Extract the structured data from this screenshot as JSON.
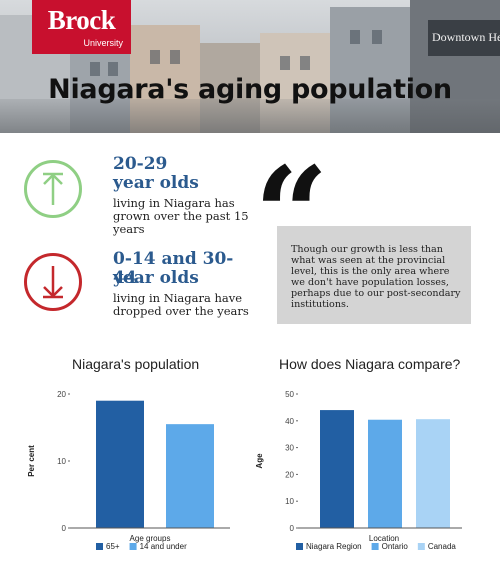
{
  "brand": {
    "name": "Brock",
    "sub": "University",
    "color": "#c8102e"
  },
  "header": {
    "title": "Niagara's aging population",
    "sign_text": "Downtown Health"
  },
  "stats": [
    {
      "heading_1": "20-29",
      "heading_2": "year olds",
      "body": "living in Niagara has grown over the past 15 years",
      "icon": "arrow-up-icon",
      "color": "#8fcf84"
    },
    {
      "heading_1": "0-14 and 30-44",
      "heading_2": "year olds",
      "body": "living in Niagara have dropped over the years",
      "icon": "arrow-down-icon",
      "color": "#c4282c"
    }
  ],
  "quote": {
    "mark": "“",
    "text": "Though our growth is less than what was seen at the provincial level, this is the only area where we don't have population losses, perhaps due to our post-secondary institutions."
  },
  "chart_data": [
    {
      "type": "bar",
      "title": "Niagara's population",
      "xlabel": "Age groups",
      "ylabel": "Per cent",
      "ylim": [
        0,
        20
      ],
      "yticks": [
        0,
        10,
        20
      ],
      "grid": false,
      "legend": "bottom",
      "series": [
        {
          "name": "65+",
          "value": 19,
          "color": "#225fa3"
        },
        {
          "name": "14 and under",
          "value": 15.5,
          "color": "#5da9e9"
        }
      ]
    },
    {
      "type": "bar",
      "title": "How does Niagara compare?",
      "xlabel": "Location",
      "ylabel": "Age",
      "ylim": [
        0,
        50
      ],
      "yticks": [
        0,
        10,
        20,
        30,
        40,
        50
      ],
      "grid": false,
      "legend": "bottom",
      "series": [
        {
          "name": "Niagara Region",
          "value": 44,
          "color": "#225fa3"
        },
        {
          "name": "Ontario",
          "value": 40.4,
          "color": "#5da9e9"
        },
        {
          "name": "Canada",
          "value": 40.6,
          "color": "#a9d3f5"
        }
      ]
    }
  ]
}
